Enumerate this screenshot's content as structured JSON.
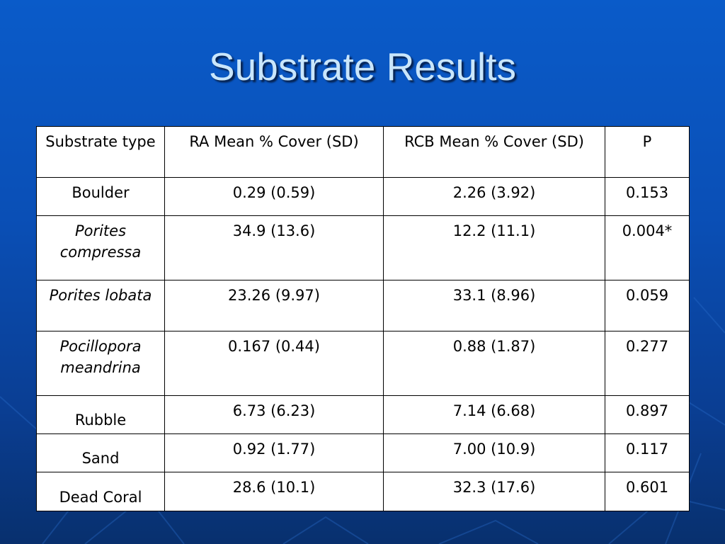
{
  "slide": {
    "title": "Substrate Results"
  },
  "table": {
    "headers": [
      "Substrate type",
      "RA Mean % Cover (SD)",
      "RCB Mean % Cover (SD)",
      "P"
    ],
    "rows": [
      {
        "substrate": "Boulder",
        "ra": "0.29 (0.59)",
        "rcb": "2.26 (3.92)",
        "p": "0.153"
      },
      {
        "substrate": "Porites compressa",
        "ra": "34.9 (13.6)",
        "rcb": "12.2 (11.1)",
        "p": "0.004*"
      },
      {
        "substrate": "Porites lobata",
        "ra": "23.26 (9.97)",
        "rcb": "33.1 (8.96)",
        "p": "0.059"
      },
      {
        "substrate": "Pocillopora meandrina",
        "ra": "0.167 (0.44)",
        "rcb": "0.88 (1.87)",
        "p": "0.277"
      },
      {
        "substrate": "Rubble",
        "ra": "6.73 (6.23)",
        "rcb": "7.14 (6.68)",
        "p": "0.897"
      },
      {
        "substrate": "Sand",
        "ra": "0.92 (1.77)",
        "rcb": "7.00 (10.9)",
        "p": "0.117"
      },
      {
        "substrate": "Dead Coral",
        "ra": "28.6 (10.1)",
        "rcb": "32.3 (17.6)",
        "p": "0.601"
      }
    ]
  },
  "colors": {
    "background_top": "#0a5bc9",
    "background_bottom": "#08306e",
    "title": "#c9e6fb",
    "table_background": "#ffffff"
  }
}
